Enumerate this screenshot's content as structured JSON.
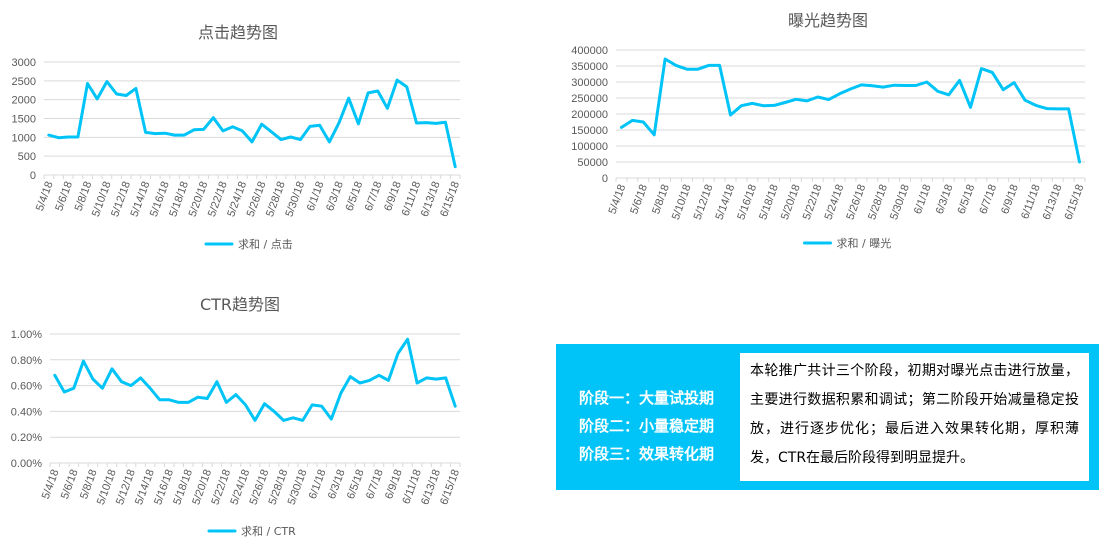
{
  "chart_data": [
    {
      "id": "clicks",
      "type": "line",
      "title": "点击趋势图",
      "xlabel": "",
      "ylabel": "",
      "categories": [
        "5/4/18",
        "5/5/18",
        "5/6/18",
        "5/7/18",
        "5/8/18",
        "5/9/18",
        "5/10/18",
        "5/11/18",
        "5/12/18",
        "5/13/18",
        "5/14/18",
        "5/15/18",
        "5/16/18",
        "5/17/18",
        "5/18/18",
        "5/19/18",
        "5/20/18",
        "5/21/18",
        "5/22/18",
        "5/23/18",
        "5/24/18",
        "5/25/18",
        "5/26/18",
        "5/27/18",
        "5/28/18",
        "5/29/18",
        "5/30/18",
        "5/31/18",
        "6/1/18",
        "6/2/18",
        "6/3/18",
        "6/4/18",
        "6/5/18",
        "6/6/18",
        "6/7/18",
        "6/8/18",
        "6/9/18",
        "6/10/18",
        "6/11/18",
        "6/12/18",
        "6/13/18",
        "6/14/18",
        "6/15/18"
      ],
      "tick_labels": [
        "5/4/18",
        "5/6/18",
        "5/8/18",
        "5/10/18",
        "5/12/18",
        "5/14/18",
        "5/16/18",
        "5/18/18",
        "5/20/18",
        "5/22/18",
        "5/24/18",
        "5/26/18",
        "5/28/18",
        "5/30/18",
        "6/1/18",
        "6/3/18",
        "6/5/18",
        "6/7/18",
        "6/9/18",
        "6/11/18",
        "6/13/18",
        "6/15/18"
      ],
      "series": [
        {
          "name": "求和 / 点击",
          "values": [
            1060,
            990,
            1010,
            1010,
            2430,
            2020,
            2480,
            2150,
            2110,
            2300,
            1130,
            1100,
            1110,
            1060,
            1060,
            1200,
            1210,
            1520,
            1170,
            1280,
            1170,
            880,
            1350,
            1150,
            940,
            1010,
            940,
            1290,
            1320,
            880,
            1390,
            2040,
            1360,
            2180,
            2230,
            1770,
            2520,
            2340,
            1380,
            1390,
            1370,
            1400,
            220
          ],
          "color": "#00c4f7"
        }
      ],
      "ylim": [
        0,
        3000
      ],
      "yticks": [
        0,
        500,
        1000,
        1500,
        2000,
        2500,
        3000
      ],
      "ytick_labels": [
        "0",
        "500",
        "1000",
        "1500",
        "2000",
        "2500",
        "3000"
      ],
      "grid": true,
      "legend": "bottom"
    },
    {
      "id": "impressions",
      "type": "line",
      "title": "曝光趋势图",
      "xlabel": "",
      "ylabel": "",
      "categories": [
        "5/4/18",
        "5/5/18",
        "5/6/18",
        "5/7/18",
        "5/8/18",
        "5/9/18",
        "5/10/18",
        "5/11/18",
        "5/12/18",
        "5/13/18",
        "5/14/18",
        "5/15/18",
        "5/16/18",
        "5/17/18",
        "5/18/18",
        "5/19/18",
        "5/20/18",
        "5/21/18",
        "5/22/18",
        "5/23/18",
        "5/24/18",
        "5/25/18",
        "5/26/18",
        "5/27/18",
        "5/28/18",
        "5/29/18",
        "5/30/18",
        "5/31/18",
        "6/1/18",
        "6/2/18",
        "6/3/18",
        "6/4/18",
        "6/5/18",
        "6/6/18",
        "6/7/18",
        "6/8/18",
        "6/9/18",
        "6/10/18",
        "6/11/18",
        "6/12/18",
        "6/13/18",
        "6/14/18",
        "6/15/18"
      ],
      "tick_labels": [
        "5/4/18",
        "5/6/18",
        "5/8/18",
        "5/10/18",
        "5/12/18",
        "5/14/18",
        "5/16/18",
        "5/18/18",
        "5/20/18",
        "5/22/18",
        "5/24/18",
        "5/26/18",
        "5/28/18",
        "5/30/18",
        "6/1/18",
        "6/3/18",
        "6/5/18",
        "6/7/18",
        "6/9/18",
        "6/11/18",
        "6/13/18",
        "6/15/18"
      ],
      "series": [
        {
          "name": "求和 / 曝光",
          "values": [
            158000,
            180000,
            175000,
            135000,
            372000,
            352000,
            340000,
            340000,
            352000,
            352000,
            197000,
            226000,
            233000,
            226000,
            227000,
            236000,
            246000,
            241000,
            253000,
            245000,
            263000,
            278000,
            291000,
            288000,
            284000,
            290000,
            289000,
            289000,
            300000,
            271000,
            260000,
            305000,
            221000,
            342000,
            330000,
            276000,
            298000,
            243000,
            227000,
            217000,
            216000,
            216000,
            50000
          ],
          "color": "#00c4f7"
        }
      ],
      "ylim": [
        0,
        400000
      ],
      "yticks": [
        0,
        50000,
        100000,
        150000,
        200000,
        250000,
        300000,
        350000,
        400000
      ],
      "ytick_labels": [
        "0",
        "50000",
        "100000",
        "150000",
        "200000",
        "250000",
        "300000",
        "350000",
        "400000"
      ],
      "grid": true,
      "legend": "bottom"
    },
    {
      "id": "ctr",
      "type": "line",
      "title": "CTR趋势图",
      "xlabel": "",
      "ylabel": "",
      "categories": [
        "5/4/18",
        "5/5/18",
        "5/6/18",
        "5/7/18",
        "5/8/18",
        "5/9/18",
        "5/10/18",
        "5/11/18",
        "5/12/18",
        "5/13/18",
        "5/14/18",
        "5/15/18",
        "5/16/18",
        "5/17/18",
        "5/18/18",
        "5/19/18",
        "5/20/18",
        "5/21/18",
        "5/22/18",
        "5/23/18",
        "5/24/18",
        "5/25/18",
        "5/26/18",
        "5/27/18",
        "5/28/18",
        "5/29/18",
        "5/30/18",
        "5/31/18",
        "6/1/18",
        "6/2/18",
        "6/3/18",
        "6/4/18",
        "6/5/18",
        "6/6/18",
        "6/7/18",
        "6/8/18",
        "6/9/18",
        "6/10/18",
        "6/11/18",
        "6/12/18",
        "6/13/18",
        "6/14/18",
        "6/15/18"
      ],
      "tick_labels": [
        "5/4/18",
        "5/6/18",
        "5/8/18",
        "5/10/18",
        "5/12/18",
        "5/14/18",
        "5/16/18",
        "5/18/18",
        "5/20/18",
        "5/22/18",
        "5/24/18",
        "5/26/18",
        "5/28/18",
        "5/30/18",
        "6/1/18",
        "6/3/18",
        "6/5/18",
        "6/7/18",
        "6/9/18",
        "6/11/18",
        "6/13/18",
        "6/15/18"
      ],
      "series": [
        {
          "name": "求和 / CTR",
          "values": [
            0.68,
            0.55,
            0.58,
            0.79,
            0.65,
            0.58,
            0.73,
            0.63,
            0.6,
            0.66,
            0.58,
            0.49,
            0.49,
            0.47,
            0.47,
            0.51,
            0.5,
            0.63,
            0.47,
            0.53,
            0.45,
            0.33,
            0.46,
            0.4,
            0.33,
            0.35,
            0.33,
            0.45,
            0.44,
            0.34,
            0.54,
            0.67,
            0.62,
            0.64,
            0.68,
            0.64,
            0.85,
            0.96,
            0.62,
            0.66,
            0.65,
            0.66,
            0.44
          ],
          "color": "#00c4f7"
        }
      ],
      "ylim": [
        0,
        1.0
      ],
      "yticks": [
        0,
        0.2,
        0.4,
        0.6,
        0.8,
        1.0
      ],
      "ytick_labels": [
        "0.00%",
        "0.20%",
        "0.40%",
        "0.60%",
        "0.80%",
        "1.00%"
      ],
      "unit": "%",
      "grid": true,
      "legend": "bottom"
    }
  ],
  "note": {
    "phases": [
      "阶段一：大量试投期",
      "阶段二：小量稳定期",
      "阶段三：效果转化期"
    ],
    "description": "本轮推广共计三个阶段，初期对曝光点击进行放量，主要进行数据积累和调试；第二阶段开始减量稳定投放，进行逐步优化；最后进入效果转化期，厚积薄发，CTR在最后阶段得到明显提升。",
    "box_color": "#00c4f7"
  }
}
